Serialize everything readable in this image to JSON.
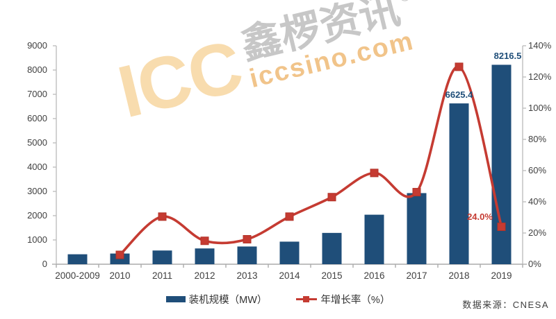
{
  "colors": {
    "bar": "#1F4E79",
    "line": "#C53B32",
    "bar_label": "#1F4E79",
    "line_label": "#C53B32",
    "axis_line": "#BFBFBF",
    "axis_text": "#404040",
    "watermark_orange": "#F8DCAE",
    "watermark_gray": "#C7C7C7",
    "watermark_url": "#F1C48A"
  },
  "watermark": {
    "brand": "ICC",
    "cjk": "鑫椤资讯",
    "registered": "®",
    "url": "iccsino.com"
  },
  "legend": {
    "items": [
      {
        "label": "装机规模（MW）"
      },
      {
        "label": "年增长率（%）"
      }
    ]
  },
  "source": "数据来源：CNESA",
  "chart_data": {
    "type": "bar",
    "subtype": "combo-bar-line",
    "title": "",
    "xlabel": "",
    "ylabel": "",
    "gridlines": false,
    "legend_position": "bottom",
    "categories": [
      "2000-2009",
      "2010",
      "2011",
      "2012",
      "2013",
      "2014",
      "2015",
      "2016",
      "2017",
      "2018",
      "2019"
    ],
    "series": [
      {
        "name": "装机规模（MW）",
        "type": "bar",
        "axis": "left",
        "values": [
          410,
          440,
          565,
          650,
          730,
          930,
          1290,
          2040,
          2930,
          6625.4,
          8216.5
        ]
      },
      {
        "name": "年增长率（%）",
        "type": "line",
        "axis": "right",
        "values": [
          null,
          6,
          30.5,
          15,
          16,
          30.5,
          43,
          58.5,
          46.2,
          126.5,
          24.0
        ]
      }
    ],
    "left_axis": {
      "min": 0,
      "max": 9000,
      "step": 1000,
      "tick_labels": [
        "0",
        "1000",
        "2000",
        "3000",
        "4000",
        "5000",
        "6000",
        "7000",
        "8000",
        "9000"
      ]
    },
    "right_axis": {
      "min": 0,
      "max": 140,
      "step": 20,
      "tick_labels": [
        "0%",
        "20%",
        "40%",
        "60%",
        "80%",
        "100%",
        "120%",
        "140%"
      ]
    },
    "annotations": [
      {
        "text": "6625.4",
        "series": "bar",
        "category_index": 9,
        "color_key": "bar_label"
      },
      {
        "text": "8216.5",
        "series": "bar",
        "category_index": 10,
        "color_key": "bar_label"
      },
      {
        "text": "24.0%",
        "series": "line",
        "category_index": 10,
        "color_key": "line_label"
      }
    ]
  }
}
